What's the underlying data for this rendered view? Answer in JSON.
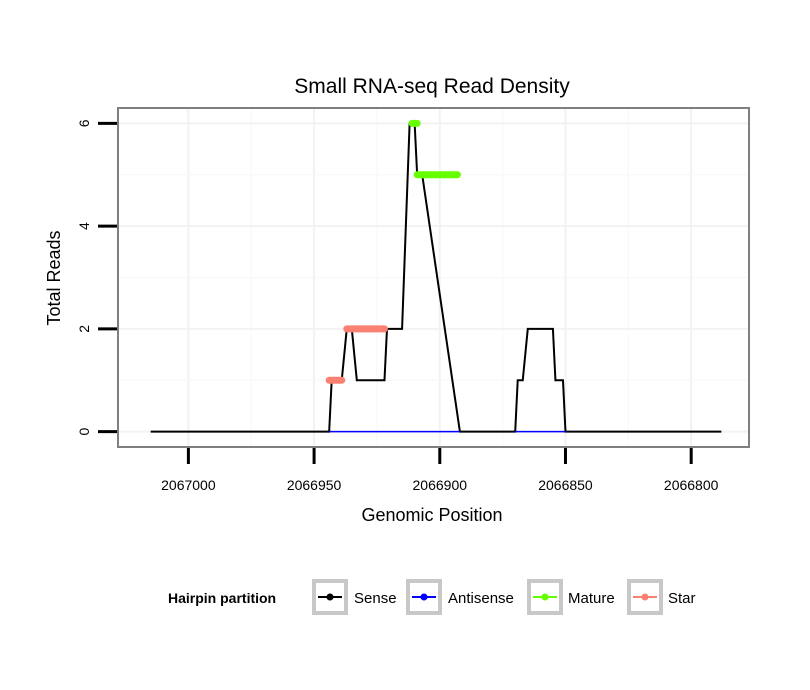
{
  "chart_data": {
    "type": "line",
    "title": "Small RNA-seq Read Density",
    "xlabel": "Genomic Position",
    "ylabel": "Total Reads",
    "x_reversed": true,
    "xlim": [
      2067028,
      2066777
    ],
    "ylim": [
      -0.3,
      6.3
    ],
    "x_ticks": [
      2067000,
      2066950,
      2066900,
      2066850,
      2066800
    ],
    "x_tick_labels": [
      "2067000",
      "2066950",
      "2066900",
      "2066850",
      "2066800"
    ],
    "y_ticks": [
      0,
      2,
      4,
      6
    ],
    "y_tick_labels": [
      "0",
      "2",
      "4",
      "6"
    ],
    "grid": true,
    "legend": {
      "title": "Hairpin partition",
      "placement": "bottom",
      "entries": [
        {
          "name": "Sense",
          "color": "#000000"
        },
        {
          "name": "Antisense",
          "color": "#0000ff"
        },
        {
          "name": "Mature",
          "color": "#66ff00"
        },
        {
          "name": "Star",
          "color": "#fa8072"
        }
      ]
    },
    "series": [
      {
        "name": "Sense",
        "color": "#000000",
        "x": [
          2067015,
          2066944,
          2066943,
          2066939,
          2066937,
          2066935,
          2066933,
          2066922,
          2066921,
          2066915,
          2066912,
          2066910,
          2066909,
          2066907,
          2066892,
          2066891,
          2066870,
          2066869,
          2066867,
          2066865,
          2066855,
          2066854,
          2066851,
          2066850,
          2066788
        ],
        "y": [
          0,
          0,
          1,
          1,
          2,
          2,
          1,
          1,
          2,
          2,
          6,
          6,
          5,
          5,
          0,
          0,
          0,
          1,
          1,
          2,
          2,
          1,
          1,
          0,
          0
        ]
      },
      {
        "name": "Antisense",
        "color": "#0000ff",
        "segments": [
          [
            2066944,
            2066892
          ],
          [
            2066870,
            2066850
          ]
        ]
      },
      {
        "name": "Mature",
        "color": "#66ff00",
        "segments": [
          [
            2066911,
            2066909,
            6
          ],
          [
            2066909,
            2066893,
            5
          ]
        ]
      },
      {
        "name": "Star",
        "color": "#fa8072",
        "segments": [
          [
            2066944,
            2066939,
            1
          ],
          [
            2066937,
            2066922,
            2
          ]
        ]
      }
    ]
  }
}
